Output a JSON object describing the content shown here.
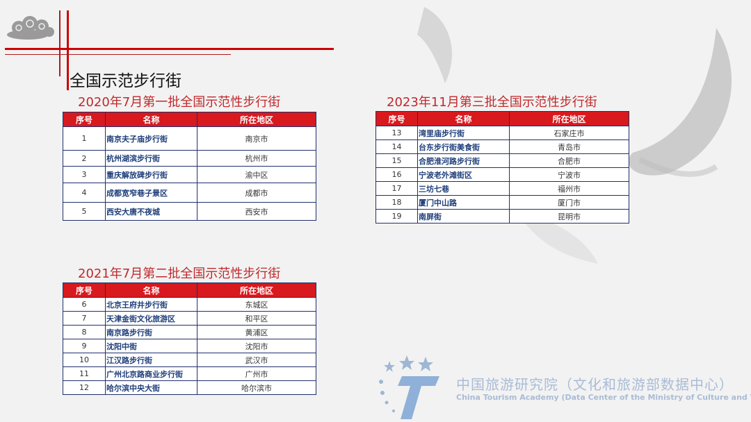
{
  "slide_title": "全国示范步行街",
  "table_headers": [
    "序号",
    "名称",
    "所在地区"
  ],
  "batches": [
    {
      "title": "2020年7月第一批全国示范性步行街",
      "rows": [
        {
          "no": "1",
          "name": "南京夫子庙步行街",
          "region": "南京市"
        },
        {
          "no": "2",
          "name": "杭州湖滨步行街",
          "region": "杭州市"
        },
        {
          "no": "3",
          "name": "重庆解放碑步行街",
          "region": "渝中区"
        },
        {
          "no": "4",
          "name": "成都宽窄巷子景区",
          "region": "成都市"
        },
        {
          "no": "5",
          "name": "西安大唐不夜城",
          "region": "西安市"
        }
      ]
    },
    {
      "title": "2021年7月第二批全国示范性步行街",
      "rows": [
        {
          "no": "6",
          "name": "北京王府井步行街",
          "region": "东城区"
        },
        {
          "no": "7",
          "name": "天津金街文化旅游区",
          "region": "和平区"
        },
        {
          "no": "8",
          "name": "南京路步行街",
          "region": "黄浦区"
        },
        {
          "no": "9",
          "name": "沈阳中街",
          "region": "沈阳市"
        },
        {
          "no": "10",
          "name": "江汉路步行街",
          "region": "武汉市"
        },
        {
          "no": "11",
          "name": "广州北京路商业步行街",
          "region": "广州市"
        },
        {
          "no": "12",
          "name": "哈尔滨中央大街",
          "region": "哈尔滨市"
        }
      ]
    },
    {
      "title": "2023年11月第三批全国示范性步行街",
      "rows": [
        {
          "no": "13",
          "name": "湾里庙步行街",
          "region": "石家庄市"
        },
        {
          "no": "14",
          "name": "台东步行街美食街",
          "region": "青岛市"
        },
        {
          "no": "15",
          "name": "合肥淮河路步行街",
          "region": "合肥市"
        },
        {
          "no": "16",
          "name": "宁波老外滩街区",
          "region": "宁波市"
        },
        {
          "no": "17",
          "name": "三坊七巷",
          "region": "福州市"
        },
        {
          "no": "18",
          "name": "厦门中山路",
          "region": "厦门市"
        },
        {
          "no": "19",
          "name": "南屏街",
          "region": "昆明市"
        }
      ]
    }
  ],
  "footer_logo": {
    "name_cn": "中国旅游研究院（文化和旅游部数据中心）",
    "name_en": "China Tourism Academy (Data Center of the Ministry of Culture and Tourism)"
  },
  "colors": {
    "accent_red": "#d8191e",
    "title_red": "#c0282b",
    "border_navy": "#1f2f6b",
    "name_blue": "#1d3d7a"
  }
}
